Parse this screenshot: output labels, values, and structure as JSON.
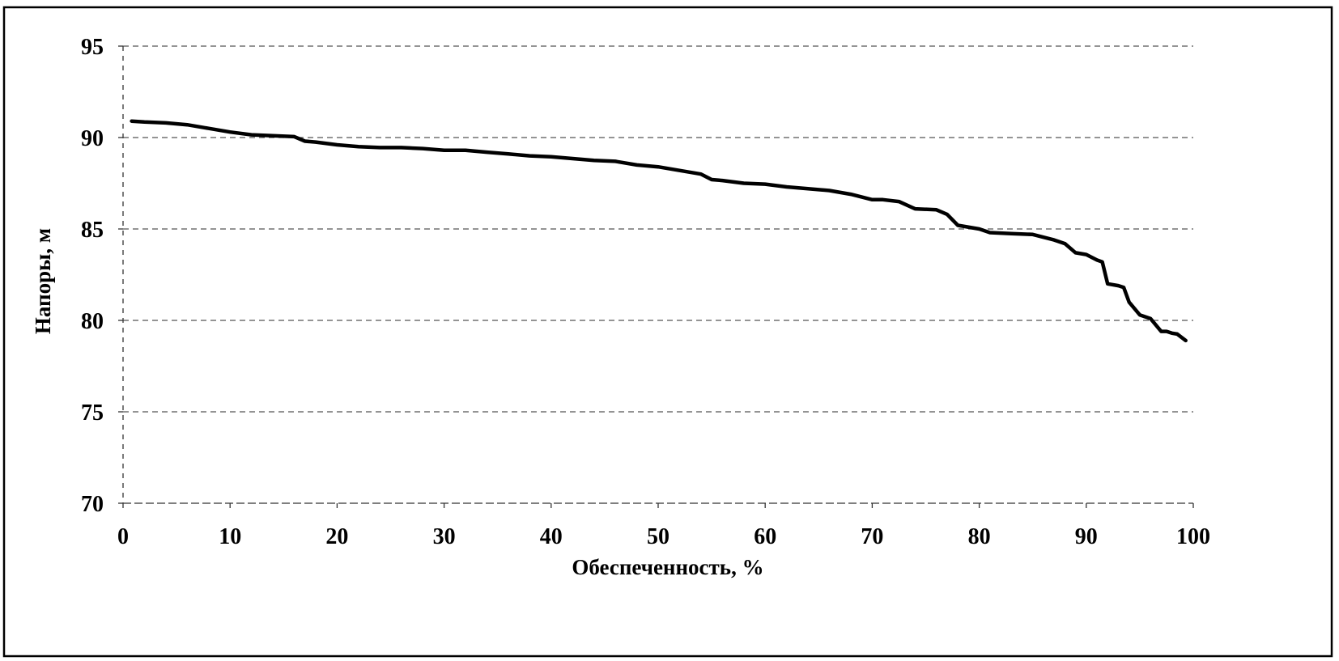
{
  "chart_data": {
    "type": "line",
    "title": "",
    "xlabel": "Обеспеченность, %",
    "ylabel": "Напоры, м",
    "xlim": [
      0,
      100
    ],
    "ylim": [
      70,
      95
    ],
    "x_ticks": [
      0,
      10,
      20,
      30,
      40,
      50,
      60,
      70,
      80,
      90,
      100
    ],
    "y_ticks": [
      70,
      75,
      80,
      85,
      90,
      95
    ],
    "grid": "horizontal-dashed",
    "legend": "none",
    "line_color": "#000000",
    "series": [
      {
        "x": [
          0.8,
          2,
          4,
          6,
          8,
          10,
          12,
          14,
          16,
          17,
          18,
          20,
          22,
          24,
          26,
          28,
          30,
          32,
          34,
          36,
          38,
          40,
          42,
          44,
          46,
          48,
          50,
          52,
          54,
          55,
          56,
          58,
          60,
          62,
          64,
          66,
          68,
          70,
          71,
          72.5,
          74,
          76,
          77,
          78,
          80,
          81,
          83,
          85,
          87,
          88,
          89,
          90,
          91,
          91.5,
          92,
          93,
          93.5,
          94,
          95,
          96,
          97,
          97.5,
          98,
          98.5,
          99.3
        ],
        "y": [
          90.9,
          90.85,
          90.8,
          90.7,
          90.5,
          90.3,
          90.15,
          90.1,
          90.05,
          89.8,
          89.75,
          89.6,
          89.5,
          89.45,
          89.45,
          89.4,
          89.3,
          89.3,
          89.2,
          89.1,
          89.0,
          88.95,
          88.85,
          88.75,
          88.7,
          88.5,
          88.4,
          88.2,
          88.0,
          87.7,
          87.65,
          87.5,
          87.45,
          87.3,
          87.2,
          87.1,
          86.9,
          86.6,
          86.6,
          86.5,
          86.1,
          86.05,
          85.8,
          85.2,
          85.0,
          84.8,
          84.75,
          84.7,
          84.4,
          84.2,
          83.7,
          83.6,
          83.3,
          83.2,
          82.0,
          81.9,
          81.8,
          81.0,
          80.3,
          80.1,
          79.4,
          79.4,
          79.3,
          79.25,
          78.9
        ]
      }
    ]
  }
}
